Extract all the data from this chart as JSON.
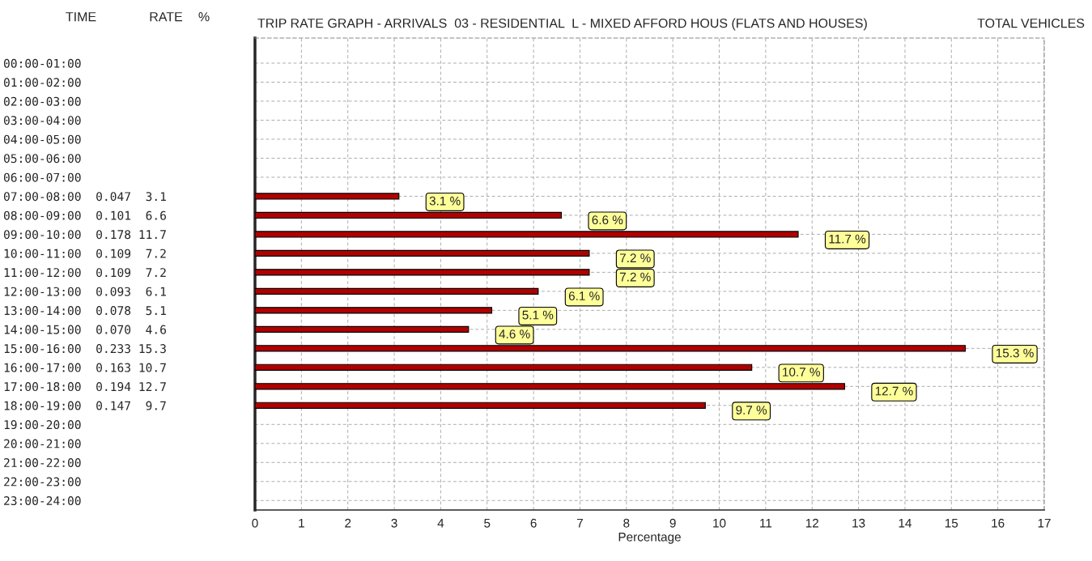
{
  "chart_data": {
    "type": "bar",
    "orientation": "horizontal",
    "title": "TRIP RATE GRAPH - ARRIVALS  03 - RESIDENTIAL  L - MIXED AFFORD HOUS (FLATS AND HOUSES)",
    "subtitle": "TOTAL VEHICLES",
    "xlabel": "Percentage",
    "annotations": [
      "TIME",
      "RATE",
      "%"
    ],
    "categories": [
      "00:00-01:00",
      "01:00-02:00",
      "02:00-03:00",
      "03:00-04:00",
      "04:00-05:00",
      "05:00-06:00",
      "06:00-07:00",
      "07:00-08:00  0.047  3.1",
      "08:00-09:00  0.101  6.6",
      "09:00-10:00  0.178 11.7",
      "10:00-11:00  0.109  7.2",
      "11:00-12:00  0.109  7.2",
      "12:00-13:00  0.093  6.1",
      "13:00-14:00  0.078  5.1",
      "14:00-15:00  0.070  4.6",
      "15:00-16:00  0.233 15.3",
      "16:00-17:00  0.163 10.7",
      "17:00-18:00  0.194 12.7",
      "18:00-19:00  0.147  9.7",
      "19:00-20:00",
      "20:00-21:00",
      "21:00-22:00",
      "22:00-23:00",
      "23:00-24:00"
    ],
    "values": [
      null,
      null,
      null,
      null,
      null,
      null,
      null,
      3.1,
      6.6,
      11.7,
      7.2,
      7.2,
      6.1,
      5.1,
      4.6,
      15.3,
      10.7,
      12.7,
      9.7,
      null,
      null,
      null,
      null,
      null
    ],
    "value_labels": [
      null,
      null,
      null,
      null,
      null,
      null,
      null,
      "3.1 %",
      "6.6 %",
      "11.7 %",
      "7.2 %",
      "7.2 %",
      "6.1 %",
      "5.1 %",
      "4.6 %",
      "15.3 %",
      "10.7 %",
      "12.7 %",
      "9.7 %",
      null,
      null,
      null,
      null,
      null
    ],
    "color": "#b00000",
    "xlim": [
      0,
      17
    ],
    "xticks": [
      0,
      1,
      2,
      3,
      4,
      5,
      6,
      7,
      8,
      9,
      10,
      11,
      12,
      13,
      14,
      15,
      16,
      17
    ],
    "grid": true
  }
}
